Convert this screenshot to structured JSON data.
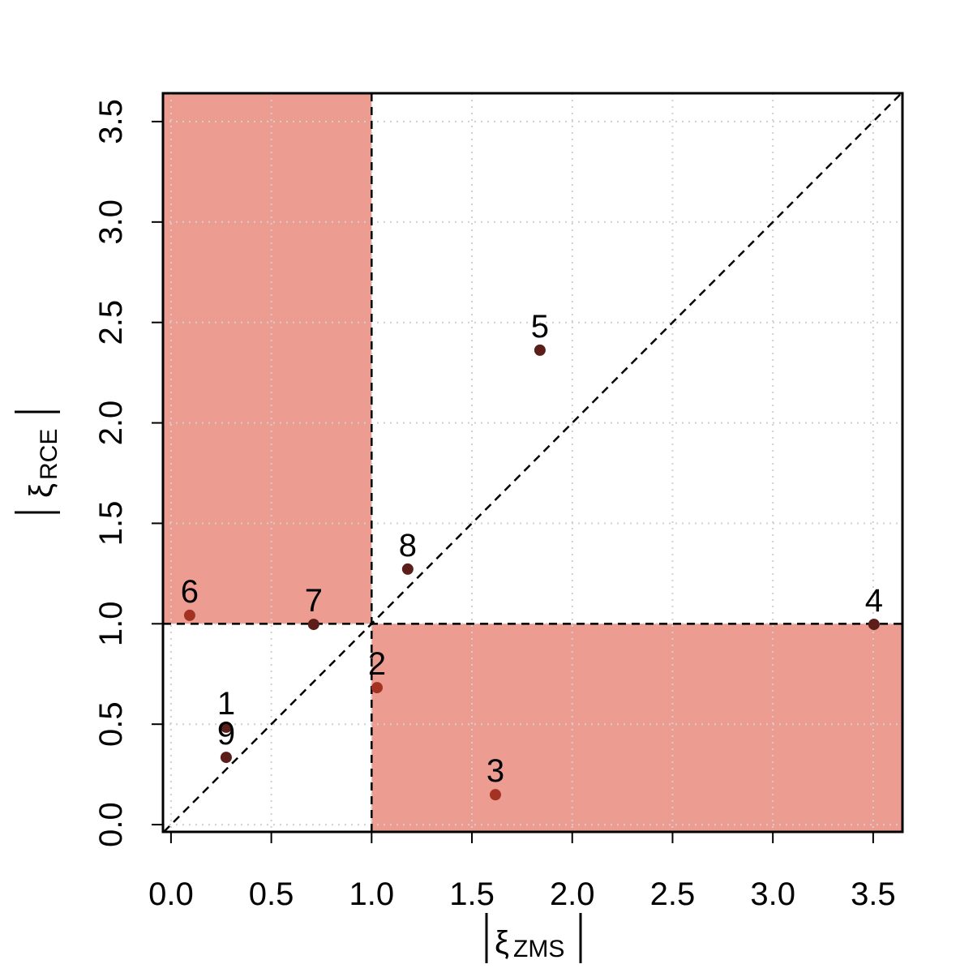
{
  "chart_data": {
    "type": "scatter",
    "xlabel_symbol": "ξ",
    "xlabel_sub": "ZMS",
    "ylabel_symbol": "ξ",
    "ylabel_sub": "RCE",
    "series": [
      {
        "labels": [
          "1",
          "2",
          "3",
          "4",
          "5",
          "6",
          "7",
          "8",
          "9"
        ],
        "x": [
          0.275,
          1.027,
          1.617,
          3.504,
          1.839,
          0.093,
          0.711,
          1.18,
          0.275
        ],
        "values": [
          0.485,
          0.682,
          0.149,
          0.997,
          2.362,
          1.042,
          0.997,
          1.272,
          0.335
        ],
        "colors": [
          "#5b1e18",
          "#a33222",
          "#a33222",
          "#5b1e18",
          "#5b1e18",
          "#a33222",
          "#5b1e18",
          "#5b1e18",
          "#5b1e18"
        ]
      }
    ],
    "threshold": 1,
    "shade_color": "#ec9c91",
    "xlim": [
      -0.04,
      3.646
    ],
    "ylim": [
      -0.036,
      3.641
    ],
    "xticks": [
      {
        "value": 0,
        "label": "0.0"
      },
      0.5,
      {
        "value": 1,
        "label": "1.0"
      },
      1.5,
      {
        "value": 2,
        "label": "2.0"
      },
      2.5,
      {
        "value": 3,
        "label": "3.0"
      },
      3.5
    ],
    "yticks": [
      {
        "value": 0,
        "label": "0.0"
      },
      0.5,
      {
        "value": 1,
        "label": "1.0"
      },
      1.5,
      {
        "value": 2,
        "label": "2.0"
      },
      2.5,
      {
        "value": 3,
        "label": "3.0"
      },
      3.5
    ],
    "grid": true
  }
}
